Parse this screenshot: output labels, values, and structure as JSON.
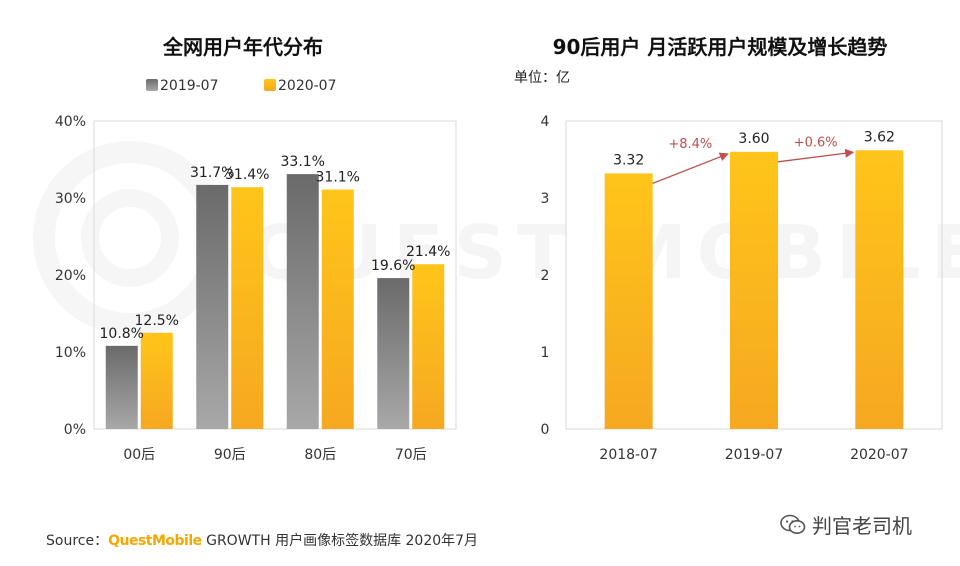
{
  "watermark": "QUEST MOBILE",
  "chart_data": [
    {
      "type": "bar",
      "title": "全网用户年代分布",
      "categories": [
        "00后",
        "90后",
        "80后",
        "70后"
      ],
      "series": [
        {
          "name": "2019-07",
          "values": [
            10.8,
            31.7,
            33.1,
            19.6
          ],
          "labels": [
            "10.8%",
            "31.7%",
            "33.1%",
            "19.6%"
          ],
          "color": "#7f7f7f"
        },
        {
          "name": "2020-07",
          "values": [
            12.5,
            31.4,
            31.1,
            21.4
          ],
          "labels": [
            "12.5%",
            "31.4%",
            "31.1%",
            "21.4%"
          ],
          "color": "#ffc000"
        }
      ],
      "ylim": [
        0,
        40
      ],
      "yticks": [
        "0%",
        "10%",
        "20%",
        "30%",
        "40%"
      ],
      "legend": "top",
      "grid": false
    },
    {
      "type": "bar",
      "title": "90后用户 月活跃用户规模及增长趋势",
      "unit": "单位：亿",
      "categories": [
        "2018-07",
        "2019-07",
        "2020-07"
      ],
      "values": [
        3.32,
        3.6,
        3.62
      ],
      "labels": [
        "3.32",
        "3.60",
        "3.62"
      ],
      "growth": [
        "+8.4%",
        "+0.6%"
      ],
      "color": "#ffc000",
      "growth_color": "#c0504d",
      "ylim": [
        0,
        4
      ],
      "yticks": [
        "0",
        "1",
        "2",
        "3",
        "4"
      ],
      "grid": false
    }
  ],
  "footer": {
    "source_prefix": "Source：",
    "brand": "QuestMobile",
    "rest": " GROWTH 用户画像标签数据库 2020年7月"
  },
  "wechat": {
    "icon": "wechat-icon",
    "label": "判官老司机"
  }
}
